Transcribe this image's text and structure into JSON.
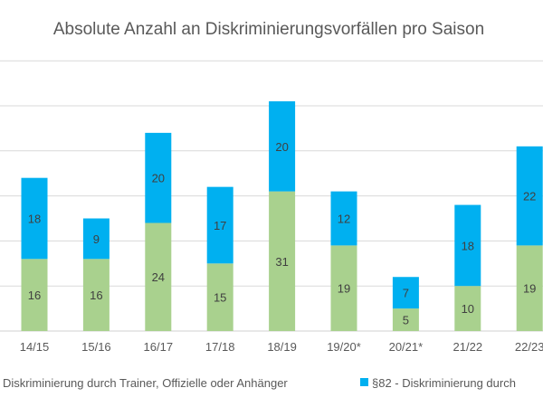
{
  "chart_data": {
    "type": "bar",
    "stacked": true,
    "title": "Absolute Anzahl an Diskriminierungsvorfällen pro Saison",
    "categories": [
      "14/15",
      "15/16",
      "16/17",
      "17/18",
      "18/19",
      "19/20*",
      "20/21*",
      "21/22",
      "22/23"
    ],
    "series": [
      {
        "name": "- Diskriminierung durch Trainer, Offizielle oder Anhänger",
        "color": "#a9d18e",
        "values": [
          16,
          16,
          24,
          15,
          31,
          19,
          5,
          10,
          19
        ]
      },
      {
        "name": "§82 -  Diskriminierung durch",
        "color": "#00b0f0",
        "values": [
          18,
          9,
          20,
          17,
          20,
          12,
          7,
          18,
          22
        ]
      }
    ],
    "ylim": [
      0,
      60
    ],
    "grid": true,
    "legend": "bottom",
    "xlabel": "",
    "ylabel": ""
  }
}
